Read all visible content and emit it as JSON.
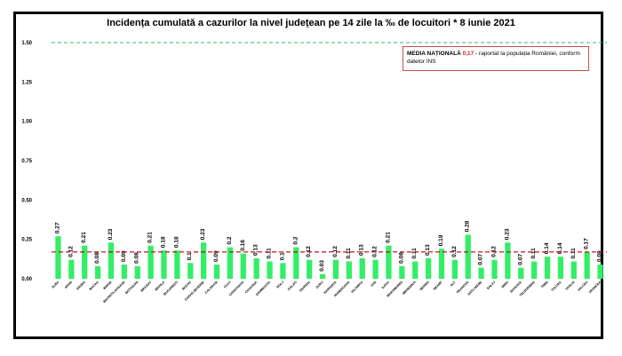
{
  "chart_data": {
    "type": "bar",
    "title": "Incidența cumulată a cazurilor la nivel județean pe 14 zile la ‰ de locuitori *  8 iunie 2021",
    "xlabel": "",
    "ylabel": "",
    "ylim": [
      0,
      1.5
    ],
    "yticks": [
      "0.00",
      "0.25",
      "0.50",
      "0.75",
      "1.00",
      "1.25",
      "1.50"
    ],
    "grid": false,
    "categories": [
      "ALBA",
      "ARAD",
      "ARGES",
      "BACAU",
      "BIHOR",
      "BISTRITA-NASAUD",
      "BOTOSANI",
      "BRASOV",
      "BRAILA",
      "BUCURESTI",
      "BUZAU",
      "CARAS-SEVERIN",
      "CALARASI",
      "CLUJ",
      "CONSTANTA",
      "COVASNA",
      "DAMBOVITA",
      "DOLJ",
      "GALATI",
      "GIURGIU",
      "GORJ",
      "HARGHITA",
      "HUNEDOARA",
      "IALOMITA",
      "IASI",
      "ILFOV",
      "MARAMURES",
      "MEHEDINTI",
      "MURES",
      "NEAMT",
      "OLT",
      "PRAHOVA",
      "SATU MARE",
      "SALAJ",
      "SIBIU",
      "SUCEAVA",
      "TELEORMAN",
      "TIMIS",
      "TULCEA",
      "VASLUI",
      "VALCEA",
      "VRANCEA"
    ],
    "values": [
      0.27,
      0.12,
      0.21,
      0.08,
      0.23,
      0.09,
      0.08,
      0.21,
      0.18,
      0.18,
      0.1,
      0.23,
      0.09,
      0.2,
      0.16,
      0.13,
      0.11,
      0.1,
      0.2,
      0.12,
      0.03,
      0.12,
      0.11,
      0.13,
      0.12,
      0.21,
      0.08,
      0.11,
      0.13,
      0.19,
      0.12,
      0.28,
      0.07,
      0.12,
      0.23,
      0.07,
      0.11,
      0.14,
      0.14,
      0.11,
      0.17,
      0.09
    ],
    "value_labels": [
      "0.27",
      "0.12",
      "0.21",
      "0.08",
      "0.23",
      "0.09",
      "0.08",
      "0.21",
      "0.18",
      "0.18",
      "0.1",
      "0.23",
      "0.09",
      "0.2",
      "0.16",
      "0.13",
      "0.11",
      "0.1",
      "0.2",
      "0.12",
      "0.03",
      "0.12",
      "0.11",
      "0.13",
      "0.12",
      "0.21",
      "0.08",
      "0.11",
      "0.13",
      "0.19",
      "0.12",
      "0.28",
      "0.07",
      "0.12",
      "0.23",
      "0.07",
      "0.11",
      "0.14",
      "0.14",
      "0.11",
      "0.17",
      "0.09"
    ],
    "national_average": 0.17,
    "reference_line": 1.5,
    "colors": {
      "bar": "#33ee66",
      "average_line": "#c00000",
      "reference_line": "#3cb371",
      "note_border": "#c0504d",
      "note_value": "#e02020"
    }
  },
  "note": {
    "label": "MEDIA NAȚIONALĂ",
    "value": "0,17",
    "text": " - raportat la populația României, conform datelor INS"
  }
}
